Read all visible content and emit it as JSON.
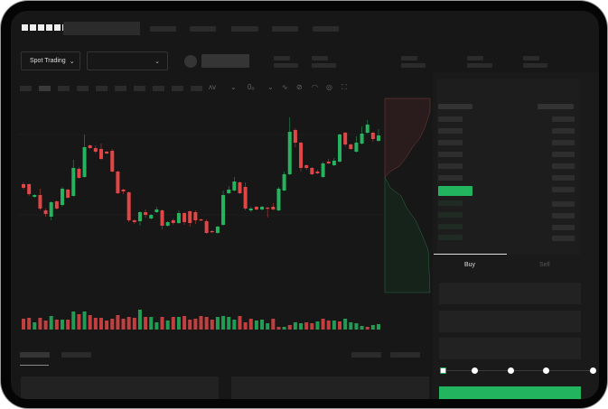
{
  "brand": {
    "logo": "OKX"
  },
  "toolbar": {
    "market_select": "Spot Trading",
    "pair_select": "",
    "chevron": "chevron-down-icon"
  },
  "trade_panel": {
    "tabs": [
      "Buy",
      "Sell"
    ],
    "active_tab": "Buy",
    "leverage_slider_value": 0,
    "slider_stops": 5
  },
  "colors": {
    "up": "#26b35f",
    "down": "#e04646",
    "background": "#171717",
    "buy_button": "#22b45e"
  },
  "chart_data": {
    "type": "candlestick",
    "title": "",
    "xlabel": "",
    "ylabel": "",
    "candles_ohlc": [
      [
        97,
        99,
        91,
        93
      ],
      [
        97,
        98,
        84,
        86
      ],
      [
        83,
        86,
        82,
        85
      ],
      [
        85,
        92,
        68,
        70
      ],
      [
        68,
        70,
        61,
        64
      ],
      [
        61,
        78,
        57,
        77
      ],
      [
        78,
        79,
        69,
        70
      ],
      [
        74,
        94,
        72,
        92
      ],
      [
        91,
        92,
        81,
        82
      ],
      [
        84,
        124,
        83,
        115
      ],
      [
        114,
        116,
        103,
        104
      ],
      [
        105,
        152,
        104,
        138
      ],
      [
        140,
        141,
        136,
        137
      ],
      [
        137,
        140,
        131,
        133
      ],
      [
        136,
        142,
        124,
        125
      ],
      [
        133,
        134,
        130,
        131
      ],
      [
        134,
        136,
        110,
        111
      ],
      [
        111,
        112,
        86,
        87
      ],
      [
        91,
        92,
        86,
        89
      ],
      [
        88,
        89,
        55,
        57
      ],
      [
        57,
        58,
        53,
        55
      ],
      [
        56,
        67,
        51,
        66
      ],
      [
        66,
        69,
        60,
        63
      ],
      [
        59,
        64,
        58,
        63
      ],
      [
        66,
        72,
        65,
        69
      ],
      [
        68,
        69,
        47,
        51
      ],
      [
        51,
        56,
        50,
        55
      ],
      [
        57,
        59,
        52,
        54
      ],
      [
        54,
        68,
        53,
        65
      ],
      [
        65,
        66,
        52,
        55
      ],
      [
        67,
        68,
        50,
        54
      ],
      [
        66,
        68,
        53,
        57
      ],
      [
        58,
        59,
        56,
        57
      ],
      [
        56,
        58,
        42,
        43
      ],
      [
        45,
        46,
        43,
        44
      ],
      [
        43,
        51,
        42,
        50
      ],
      [
        52,
        90,
        51,
        85
      ],
      [
        87,
        95,
        86,
        91
      ],
      [
        90,
        105,
        89,
        100
      ],
      [
        99,
        100,
        86,
        87
      ],
      [
        94,
        99,
        68,
        70
      ],
      [
        68,
        72,
        66,
        70
      ],
      [
        72,
        73,
        68,
        69
      ],
      [
        69,
        73,
        68,
        72
      ],
      [
        71,
        72,
        60,
        70
      ],
      [
        72,
        76,
        68,
        69
      ],
      [
        68,
        94,
        67,
        92
      ],
      [
        90,
        111,
        89,
        108
      ],
      [
        108,
        171,
        107,
        155
      ],
      [
        157,
        159,
        138,
        143
      ],
      [
        143,
        144,
        111,
        115
      ],
      [
        118,
        119,
        113,
        115
      ],
      [
        115,
        116,
        107,
        108
      ],
      [
        111,
        113,
        108,
        109
      ],
      [
        105,
        122,
        104,
        120
      ],
      [
        122,
        125,
        119,
        120
      ],
      [
        118,
        126,
        117,
        123
      ],
      [
        122,
        153,
        121,
        152
      ],
      [
        154,
        155,
        139,
        141
      ],
      [
        141,
        142,
        135,
        136
      ],
      [
        133,
        150,
        132,
        143
      ],
      [
        142,
        161,
        141,
        153
      ],
      [
        154,
        168,
        153,
        163
      ],
      [
        154,
        155,
        144,
        147
      ],
      [
        145,
        158,
        144,
        151
      ]
    ],
    "volume": [
      12,
      13,
      8,
      13,
      10,
      15,
      11,
      11,
      11,
      20,
      17,
      20,
      16,
      13,
      13,
      10,
      12,
      16,
      12,
      14,
      13,
      22,
      14,
      14,
      8,
      14,
      10,
      14,
      14,
      15,
      11,
      12,
      15,
      14,
      11,
      14,
      15,
      14,
      11,
      15,
      8,
      12,
      10,
      11,
      7,
      12,
      3,
      3,
      5,
      8,
      7,
      8,
      7,
      9,
      12,
      10,
      10,
      9,
      12,
      8,
      7,
      4,
      3,
      5,
      6
    ],
    "volume_up": [
      false,
      false,
      true,
      false,
      false,
      true,
      false,
      true,
      false,
      true,
      false,
      true,
      false,
      false,
      false,
      false,
      false,
      false,
      false,
      false,
      false,
      true,
      false,
      true,
      true,
      false,
      true,
      false,
      true,
      false,
      false,
      false,
      false,
      false,
      false,
      true,
      true,
      true,
      true,
      false,
      false,
      false,
      true,
      true,
      true,
      false,
      false,
      true,
      false,
      true,
      true,
      false,
      false,
      true,
      false,
      false,
      true,
      false,
      true,
      true,
      true,
      true,
      false,
      true,
      true
    ]
  }
}
